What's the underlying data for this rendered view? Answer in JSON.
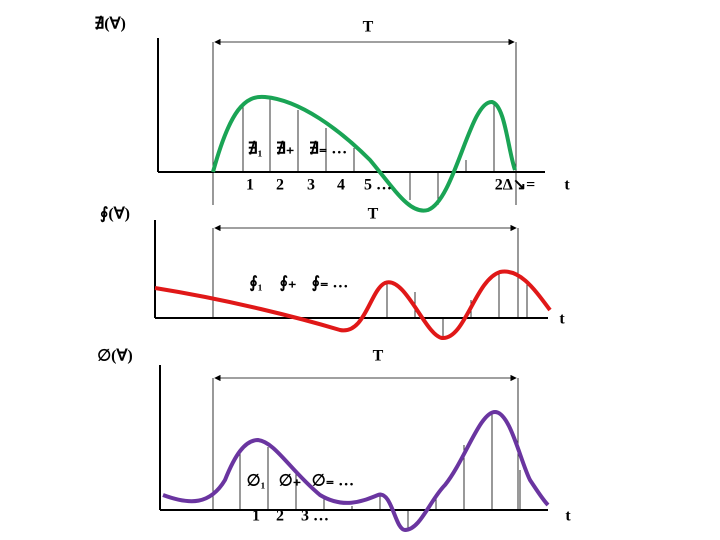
{
  "panels": [
    {
      "y_label": "∄(∀)",
      "period_label": "T",
      "sample_labels": [
        "∄₁",
        "∄₊",
        "∄₌ …"
      ],
      "ticks": [
        "1",
        "2",
        "3",
        "4",
        "5 …",
        "2Δ↘="
      ],
      "x_label": "t"
    },
    {
      "y_label": "∮(∀)",
      "period_label": "T",
      "sample_labels": [
        "∮₁",
        "∮₊",
        "∮₌ …"
      ],
      "x_label": "t"
    },
    {
      "y_label": "∅(∀)",
      "period_label": "T",
      "sample_labels": [
        "∅₁",
        "∅₊",
        "∅₌ …"
      ],
      "ticks": [
        "1",
        "2",
        "3 …"
      ],
      "x_label": "t"
    }
  ]
}
